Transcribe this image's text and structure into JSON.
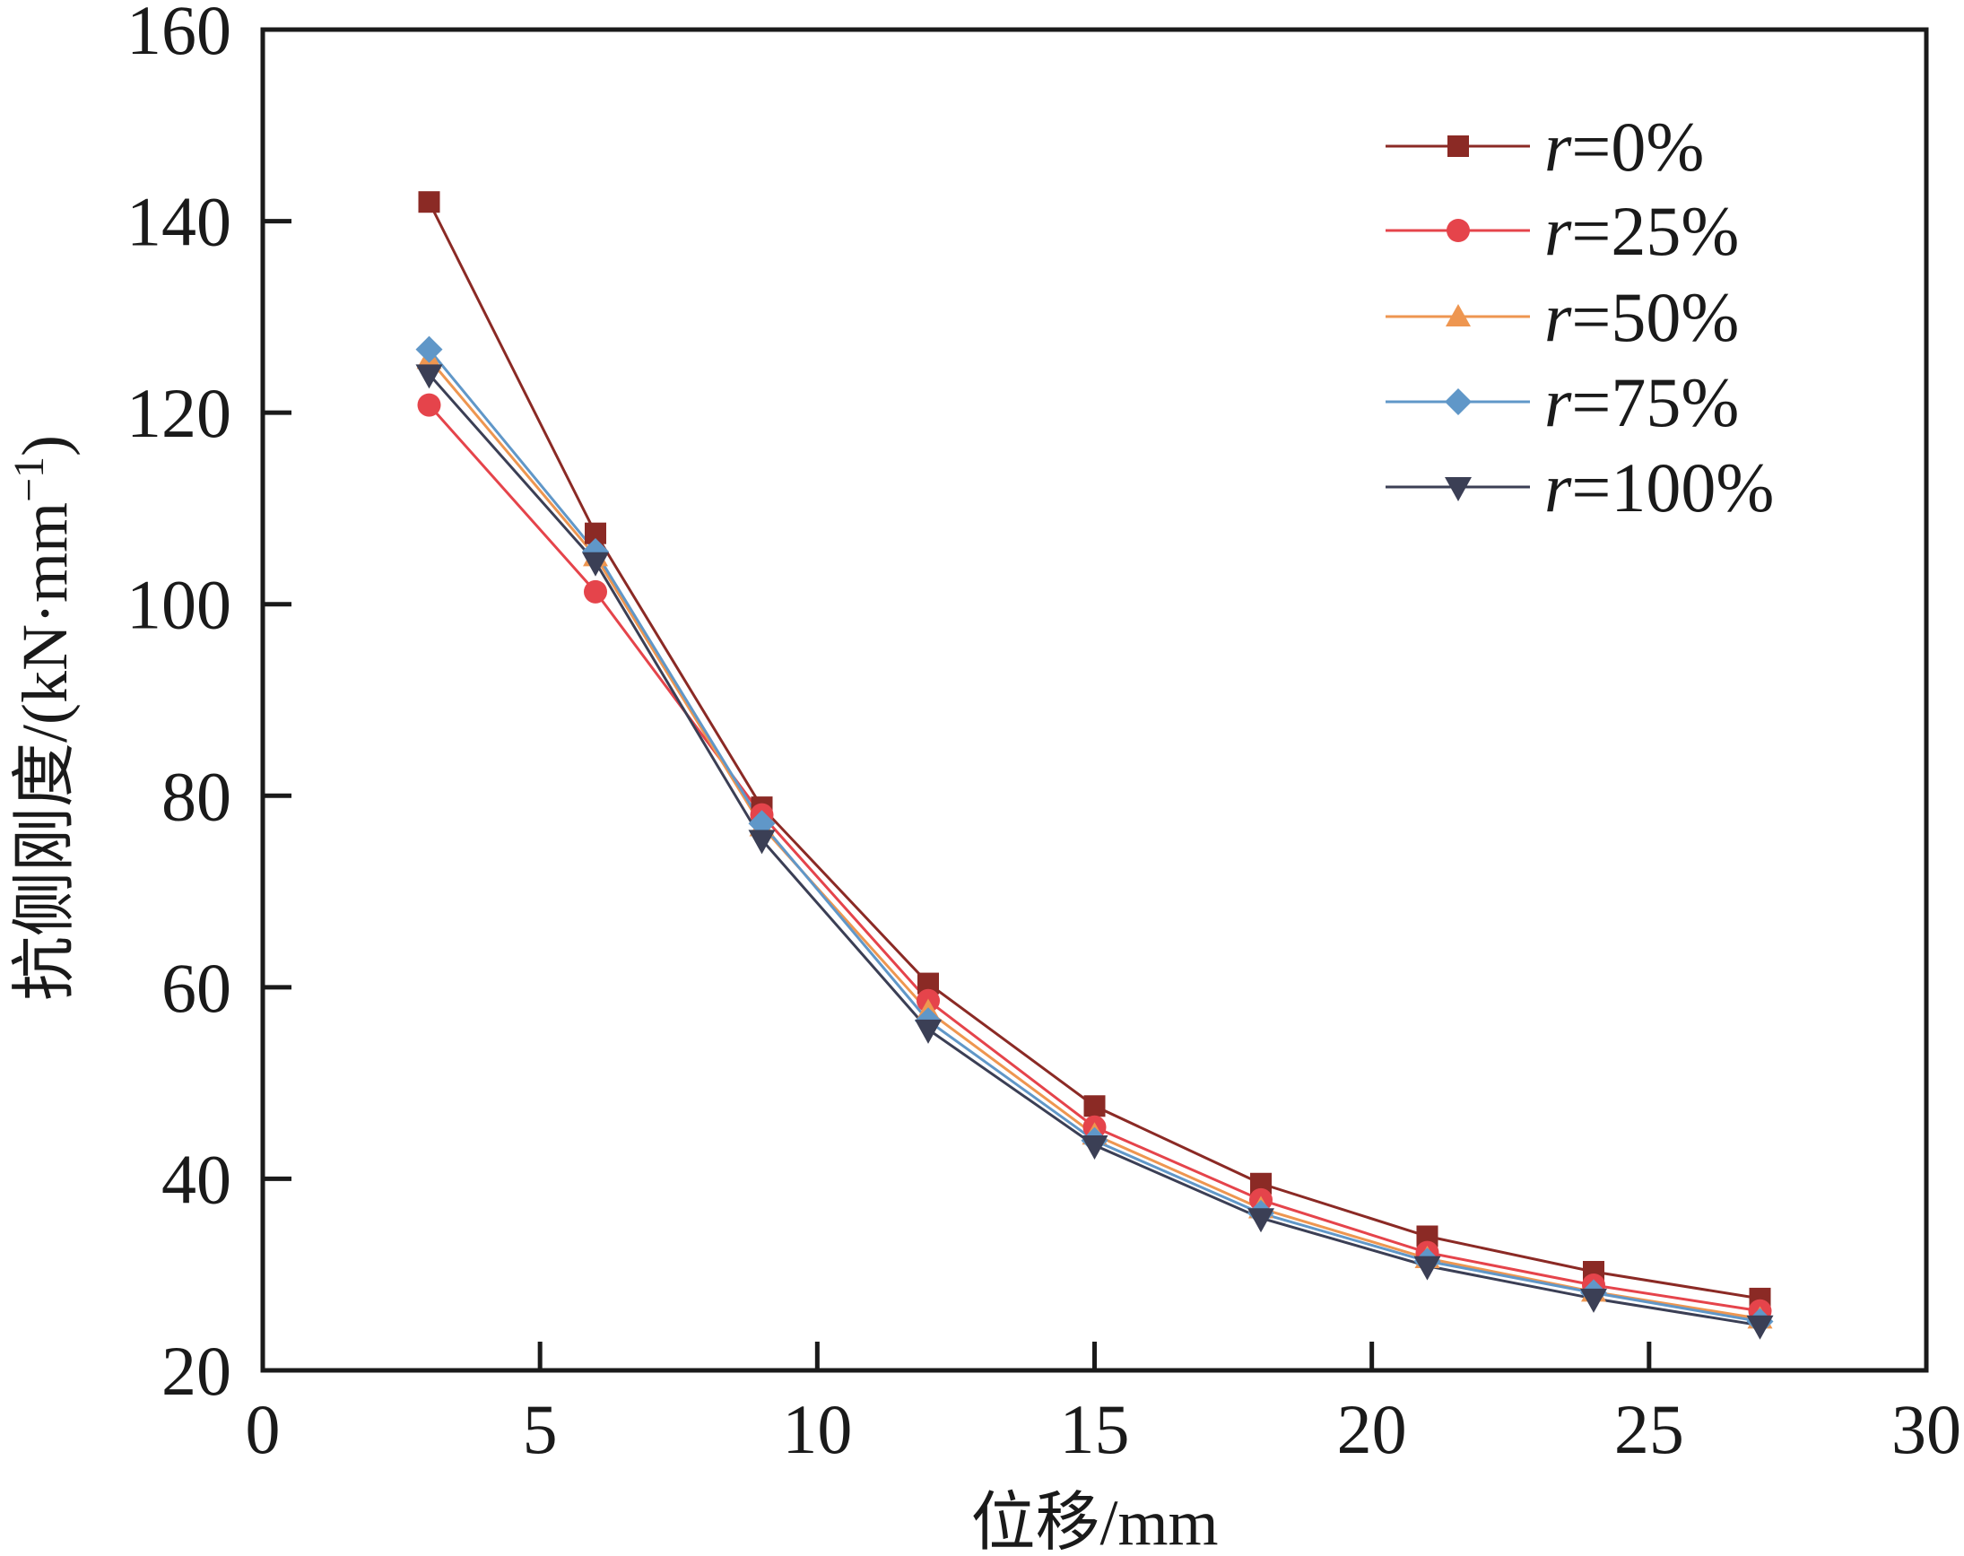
{
  "chart_data": {
    "type": "line",
    "title": "",
    "xlabel": "位移/mm",
    "ylabel": "抗侧刚度/(kN·mm⁻¹)",
    "ylabel_parts": {
      "main": "抗侧刚度/(kN·mm",
      "sup": "−1",
      "close": ")"
    },
    "xlim": [
      0,
      30
    ],
    "ylim": [
      20,
      160
    ],
    "xticks": [
      0,
      5,
      10,
      15,
      20,
      25,
      30
    ],
    "yticks": [
      20,
      40,
      60,
      80,
      100,
      120,
      140,
      160
    ],
    "xtick_labels": [
      "0",
      "5",
      "10",
      "15",
      "20",
      "25",
      "30"
    ],
    "ytick_labels": [
      "20",
      "40",
      "60",
      "80",
      "100",
      "120",
      "140",
      "160"
    ],
    "grid": false,
    "legend_position": "top-right",
    "x": [
      3,
      6,
      9,
      12,
      15,
      18,
      21,
      24,
      27
    ],
    "series": [
      {
        "name": "r=0%",
        "var": "r",
        "rest": "=0%",
        "marker": "square",
        "color": "#8B2A25",
        "values": [
          142.0,
          107.4,
          78.8,
          60.4,
          47.6,
          39.5,
          34.0,
          30.3,
          27.5
        ]
      },
      {
        "name": "r=25%",
        "var": "r",
        "rest": "=25%",
        "marker": "circle",
        "color": "#E5444B",
        "values": [
          120.8,
          101.3,
          78.0,
          58.6,
          45.4,
          37.8,
          32.3,
          28.9,
          26.2
        ]
      },
      {
        "name": "r=50%",
        "var": "r",
        "rest": "=50%",
        "marker": "triangle-up",
        "color": "#EE9650",
        "values": [
          125.6,
          105.0,
          76.8,
          57.5,
          44.6,
          36.9,
          31.7,
          28.2,
          25.4
        ]
      },
      {
        "name": "r=75%",
        "var": "r",
        "rest": "=75%",
        "marker": "diamond",
        "color": "#6097C8",
        "values": [
          126.6,
          105.5,
          77.1,
          56.5,
          44.0,
          36.4,
          31.4,
          28.1,
          25.1
        ]
      },
      {
        "name": "r=100%",
        "var": "r",
        "rest": "=100%",
        "marker": "triangle-down",
        "color": "#3B3F55",
        "values": [
          124.0,
          104.4,
          75.4,
          55.6,
          43.5,
          35.9,
          30.9,
          27.5,
          24.7
        ]
      }
    ]
  }
}
